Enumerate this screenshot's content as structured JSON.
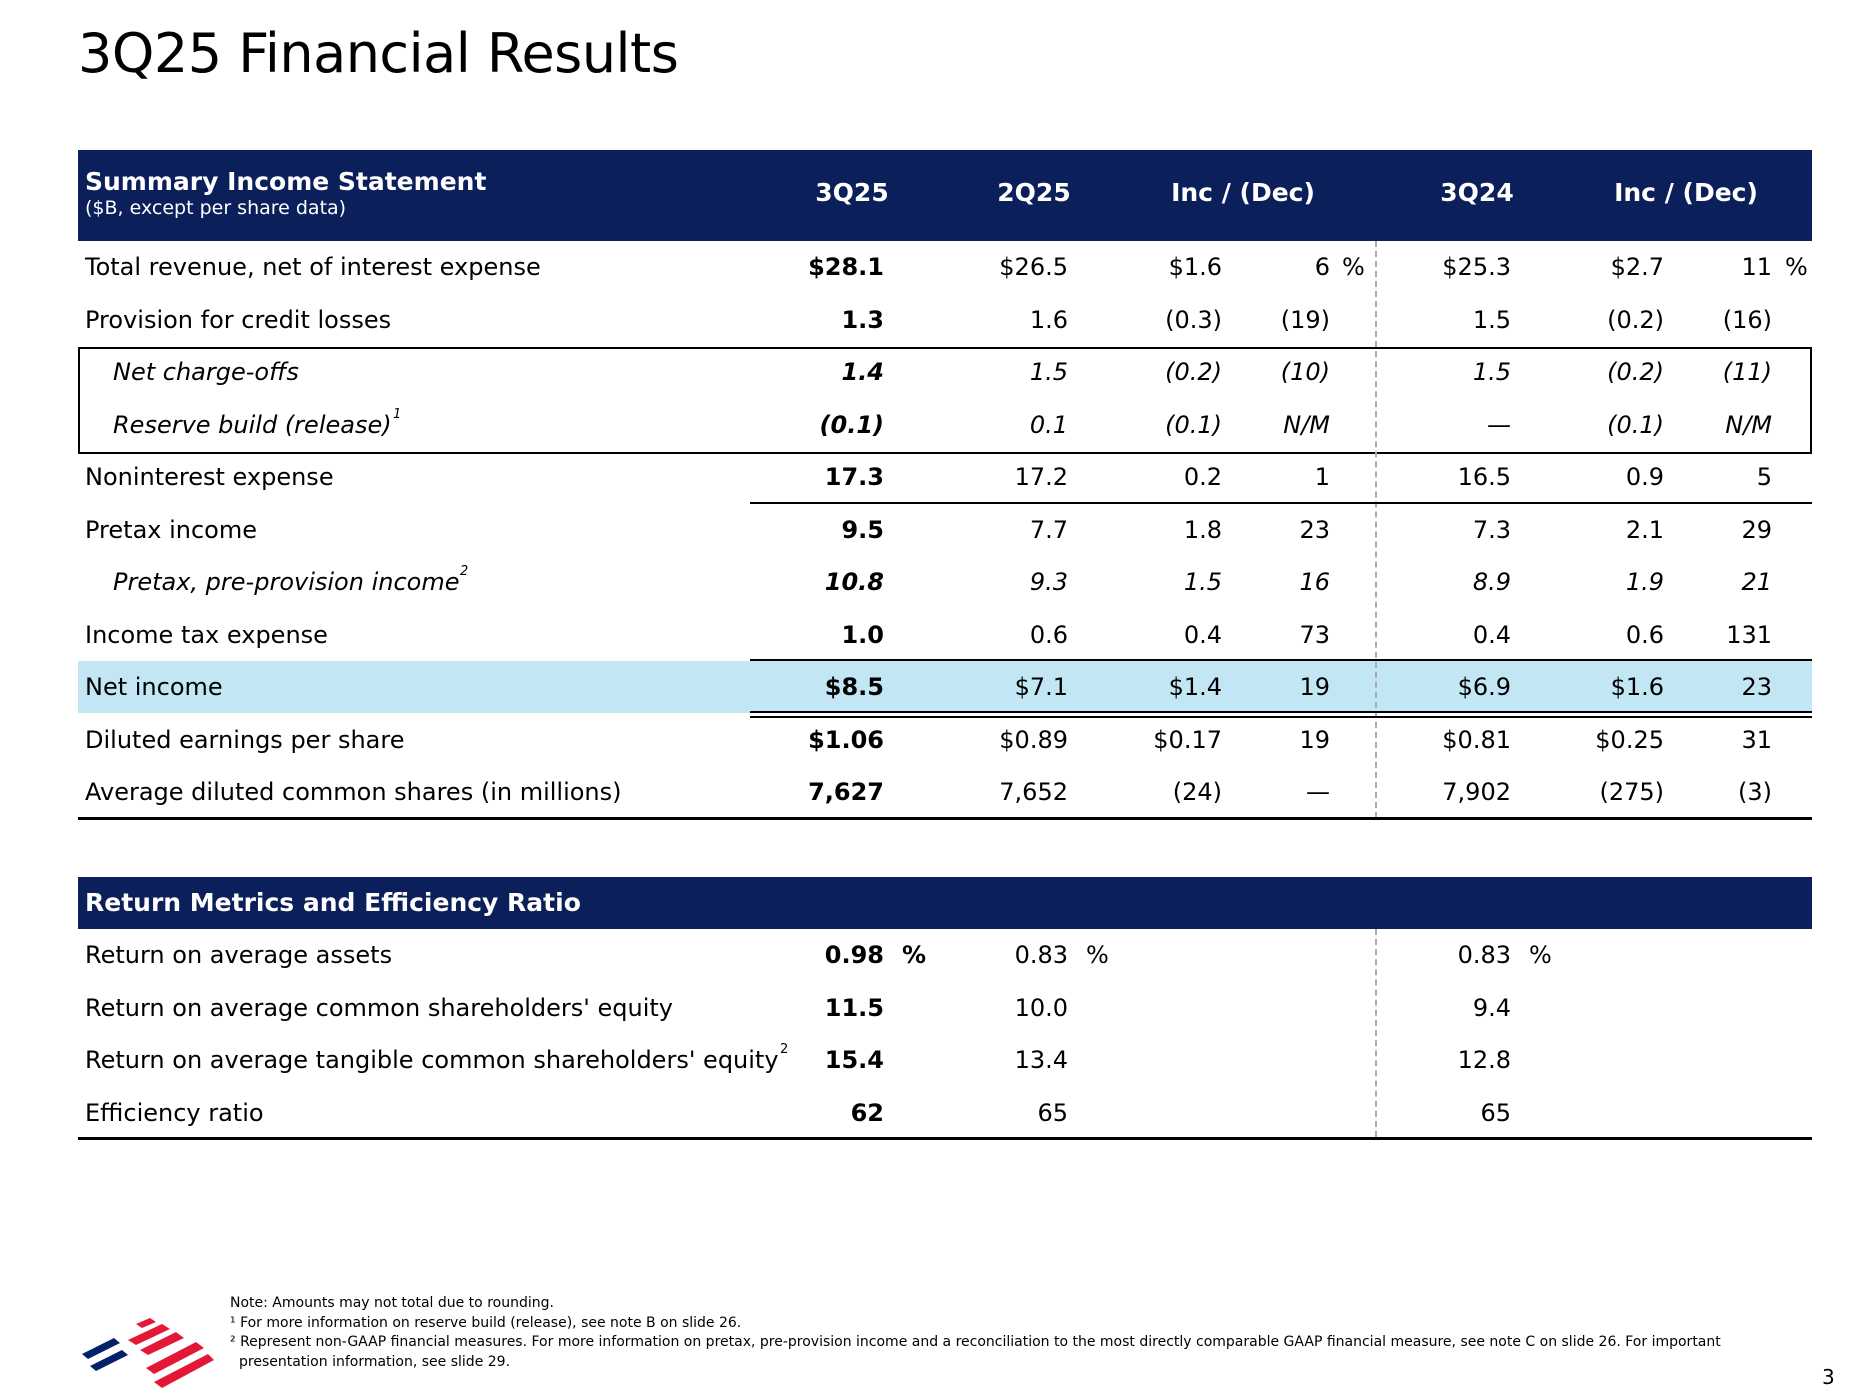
{
  "title": "3Q25 Financial Results",
  "income": {
    "header": {
      "title": "Summary Income Statement",
      "subtitle": "($B, except per share data)",
      "columns": [
        "3Q25",
        "2Q25",
        "Inc / (Dec)",
        "3Q24",
        "Inc / (Dec)"
      ]
    },
    "rows": [
      {
        "label": "Total revenue, net of interest expense",
        "v": [
          "$28.1",
          "$26.5",
          "$1.6",
          "6",
          "$25.3",
          "$2.7",
          "11"
        ],
        "pct": true
      },
      {
        "label": "Provision for credit losses",
        "v": [
          "1.3",
          "1.6",
          "(0.3)",
          "(19)",
          "1.5",
          "(0.2)",
          "(16)"
        ]
      },
      {
        "label": "Net charge-offs",
        "v": [
          "1.4",
          "1.5",
          "(0.2)",
          "(10)",
          "1.5",
          "(0.2)",
          "(11)"
        ],
        "italic": true
      },
      {
        "label": "Reserve build (release)",
        "sup": "1",
        "v": [
          "(0.1)",
          "0.1",
          "(0.1)",
          "N/M",
          "—",
          "(0.1)",
          "N/M"
        ],
        "italic": true
      },
      {
        "label": "Noninterest expense",
        "v": [
          "17.3",
          "17.2",
          "0.2",
          "1",
          "16.5",
          "0.9",
          "5"
        ]
      },
      {
        "label": "Pretax income",
        "v": [
          "9.5",
          "7.7",
          "1.8",
          "23",
          "7.3",
          "2.1",
          "29"
        ]
      },
      {
        "label": "Pretax, pre-provision income",
        "sup": "2",
        "v": [
          "10.8",
          "9.3",
          "1.5",
          "16",
          "8.9",
          "1.9",
          "21"
        ],
        "italic": true
      },
      {
        "label": "Income tax expense",
        "v": [
          "1.0",
          "0.6",
          "0.4",
          "73",
          "0.4",
          "0.6",
          "131"
        ]
      },
      {
        "label": "Net income",
        "v": [
          "$8.5",
          "$7.1",
          "$1.4",
          "19",
          "$6.9",
          "$1.6",
          "23"
        ],
        "highlight": true
      },
      {
        "label": "Diluted earnings per share",
        "v": [
          "$1.06",
          "$0.89",
          "$0.17",
          "19",
          "$0.81",
          "$0.25",
          "31"
        ]
      },
      {
        "label": "Average diluted common shares (in millions)",
        "v": [
          "7,627",
          "7,652",
          "(24)",
          "—",
          "7,902",
          "(275)",
          "(3)"
        ]
      }
    ]
  },
  "returns": {
    "header": {
      "title": "Return Metrics and Efficiency Ratio"
    },
    "rows": [
      {
        "label": "Return on average assets",
        "v": [
          "0.98",
          "0.83",
          "0.83"
        ],
        "pct": true
      },
      {
        "label": "Return on average common shareholders' equity",
        "v": [
          "11.5",
          "10.0",
          "9.4"
        ]
      },
      {
        "label": "Return on average tangible common shareholders' equity",
        "sup": "2",
        "v": [
          "15.4",
          "13.4",
          "12.8"
        ]
      },
      {
        "label": "Efficiency ratio",
        "v": [
          "62",
          "65",
          "65"
        ]
      }
    ]
  },
  "pct_symbol": "%",
  "notes": {
    "note": "Note: Amounts may not total due to rounding.",
    "fn1": "¹ For more information on reserve build (release), see note B on slide 26.",
    "fn2a": "² Represent non-GAAP financial measures. For more information on pretax, pre-provision income and a reconciliation to the most directly comparable GAAP financial measure, see note C on slide 26. For important",
    "fn2b": "presentation information, see slide 29."
  },
  "page_number": "3",
  "colors": {
    "navy": "#0b1f5b",
    "highlight": "#c3e6f5",
    "logo_red": "#e31837",
    "logo_blue": "#012169"
  }
}
